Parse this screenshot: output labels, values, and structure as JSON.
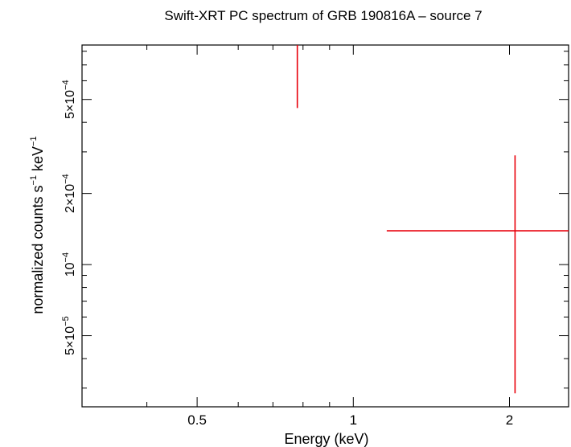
{
  "chart_data": {
    "type": "scatter",
    "title": "Swift-XRT PC spectrum of GRB 190816A – source 7",
    "xlabel": "Energy (keV)",
    "ylabel": {
      "main": "normalized counts s",
      "sup1": "−1",
      "mid": " keV",
      "sup2": "−1"
    },
    "x_scale": "log",
    "y_scale": "log",
    "xlim": [
      0.3,
      2.6
    ],
    "ylim": [
      2.5e-05,
      0.00085
    ],
    "x_ticks": [
      {
        "value": 0.5,
        "label": "0.5"
      },
      {
        "value": 1,
        "label": "1"
      },
      {
        "value": 2,
        "label": "2"
      }
    ],
    "y_ticks": [
      {
        "value": 5e-05,
        "mantissa": "5×10",
        "exp": "−5"
      },
      {
        "value": 0.0001,
        "mantissa": "10",
        "exp": "−4"
      },
      {
        "value": 0.0002,
        "mantissa": "2×10",
        "exp": "−4"
      },
      {
        "value": 0.0005,
        "mantissa": "5×10",
        "exp": "−4"
      }
    ],
    "series": [
      {
        "color": "#e8000b",
        "points": [
          {
            "x": 0.78,
            "xlo": 0.78,
            "xhi": 0.78,
            "ylo": 0.00046,
            "yhi": 0.00085
          },
          {
            "x": 2.05,
            "xlo": 1.16,
            "xhi": 2.6,
            "y": 0.000139,
            "ylo": 2.85e-05,
            "yhi": 0.00029
          }
        ]
      }
    ]
  }
}
